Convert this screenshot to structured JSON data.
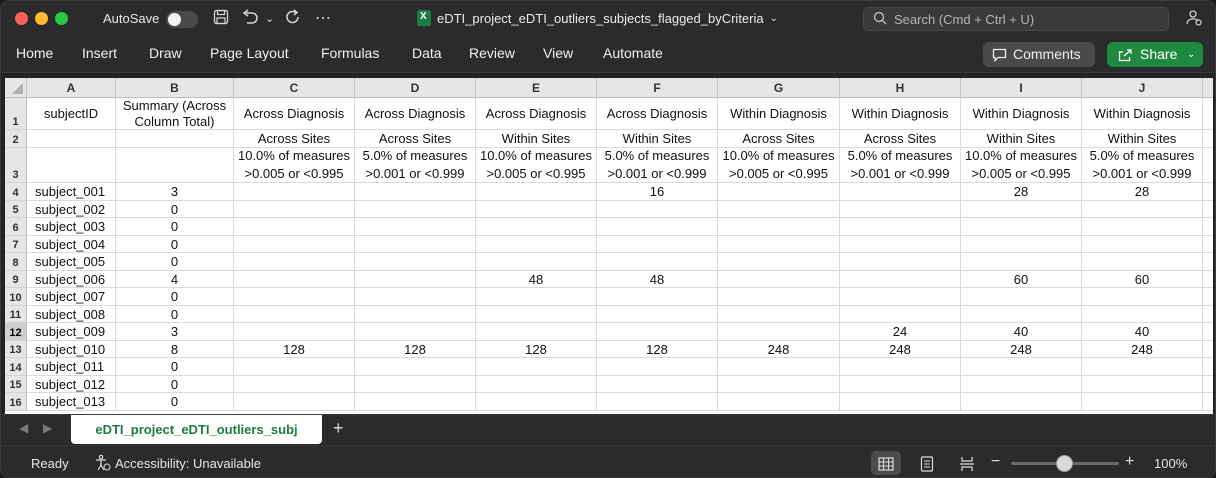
{
  "window": {
    "autosave_label": "AutoSave",
    "doc_title": "eDTI_project_eDTI_outliers_subjects_flagged_byCriteria",
    "search_placeholder": "Search (Cmd + Ctrl + U)",
    "icons": [
      "save-icon",
      "undo-icon",
      "redo-icon",
      "more-icon",
      "share-people-icon"
    ]
  },
  "ribbon": {
    "tabs": [
      "Home",
      "Insert",
      "Draw",
      "Page Layout",
      "Formulas",
      "Data",
      "Review",
      "View",
      "Automate"
    ],
    "comments_label": "Comments",
    "share_label": "Share"
  },
  "sheet": {
    "columns": [
      "A",
      "B",
      "C",
      "D",
      "E",
      "F",
      "G",
      "H",
      "I",
      "J"
    ],
    "row_numbers": [
      "1",
      "2",
      "3",
      "4",
      "5",
      "6",
      "7",
      "8",
      "9",
      "10",
      "11",
      "12",
      "13",
      "14",
      "15",
      "16"
    ],
    "header_row1": [
      "subjectID",
      "Summary (Across Column Total)",
      "Across Diagnosis",
      "Across Diagnosis",
      "Across Diagnosis",
      "Across Diagnosis",
      "Within Diagnosis",
      "Within Diagnosis",
      "Within Diagnosis",
      "Within Diagnosis"
    ],
    "header_row2": [
      "",
      "",
      "Across Sites",
      "Across Sites",
      "Within Sites",
      "Within Sites",
      "Across Sites",
      "Across Sites",
      "Within Sites",
      "Within Sites"
    ],
    "header_row3": [
      "",
      "",
      "10.0% of measures >0.005 or <0.995",
      "5.0% of measures >0.001 or <0.999",
      "10.0% of measures >0.005 or <0.995",
      "5.0% of measures >0.001 or <0.999",
      "10.0% of measures >0.005 or <0.995",
      "5.0% of measures >0.001 or <0.999",
      "10.0% of measures >0.005 or <0.995",
      "5.0% of measures >0.001 or <0.999"
    ],
    "data_rows": [
      [
        "subject_001",
        "3",
        "",
        "",
        "",
        "16",
        "",
        "",
        "28",
        "28"
      ],
      [
        "subject_002",
        "0",
        "",
        "",
        "",
        "",
        "",
        "",
        "",
        ""
      ],
      [
        "subject_003",
        "0",
        "",
        "",
        "",
        "",
        "",
        "",
        "",
        ""
      ],
      [
        "subject_004",
        "0",
        "",
        "",
        "",
        "",
        "",
        "",
        "",
        ""
      ],
      [
        "subject_005",
        "0",
        "",
        "",
        "",
        "",
        "",
        "",
        "",
        ""
      ],
      [
        "subject_006",
        "4",
        "",
        "",
        "48",
        "48",
        "",
        "",
        "60",
        "60"
      ],
      [
        "subject_007",
        "0",
        "",
        "",
        "",
        "",
        "",
        "",
        "",
        ""
      ],
      [
        "subject_008",
        "0",
        "",
        "",
        "",
        "",
        "",
        "",
        "",
        ""
      ],
      [
        "subject_009",
        "3",
        "",
        "",
        "",
        "",
        "",
        "24",
        "40",
        "40"
      ],
      [
        "subject_010",
        "8",
        "128",
        "128",
        "128",
        "128",
        "248",
        "248",
        "248",
        "248"
      ],
      [
        "subject_011",
        "0",
        "",
        "",
        "",
        "",
        "",
        "",
        "",
        ""
      ],
      [
        "subject_012",
        "0",
        "",
        "",
        "",
        "",
        "",
        "",
        "",
        ""
      ],
      [
        "subject_013",
        "0",
        "",
        "",
        "",
        "",
        "",
        "",
        "",
        ""
      ]
    ],
    "selected_row": "12"
  },
  "tabs": {
    "sheet_name": "eDTI_project_eDTI_outliers_subj",
    "add_label": "+"
  },
  "status": {
    "ready": "Ready",
    "accessibility": "Accessibility: Unavailable",
    "zoom_label": "100%",
    "zoom_level": 0.5
  }
}
